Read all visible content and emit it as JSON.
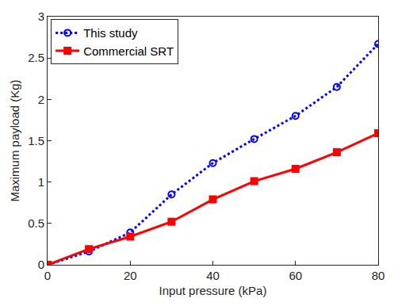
{
  "chart_data": {
    "type": "line",
    "x_label": "Input pressure (kPa)",
    "y_label": "Maximum payload (Kg)",
    "x": [
      0,
      10,
      20,
      30,
      40,
      50,
      60,
      70,
      80
    ],
    "series": [
      {
        "name": "This study",
        "color": "#0000ff",
        "marker": "circle-open",
        "line_style": "dot",
        "values": [
          0,
          0.16,
          0.39,
          0.85,
          1.23,
          1.52,
          1.8,
          2.15,
          2.67
        ]
      },
      {
        "name": "Commercial SRT",
        "color": "#ff0000",
        "marker": "square",
        "line_style": "solid",
        "values": [
          0,
          0.19,
          0.34,
          0.52,
          0.79,
          1.01,
          1.16,
          1.36,
          1.59
        ]
      }
    ],
    "xlim": [
      0,
      80
    ],
    "xticks": [
      0,
      20,
      40,
      60,
      80
    ],
    "ylim": [
      0,
      3
    ],
    "yticks": [
      0,
      0.5,
      1,
      1.5,
      2,
      2.5,
      3
    ],
    "grid": false,
    "legend": "top-left"
  }
}
